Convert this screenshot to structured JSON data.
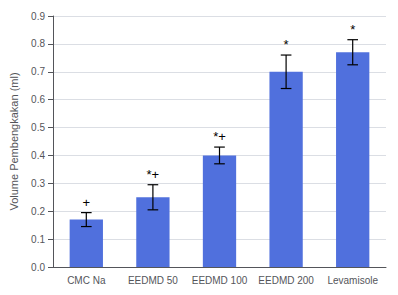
{
  "chart_data": {
    "type": "bar",
    "categories": [
      "CMC Na",
      "EEDMD 50",
      "EEDMD 100",
      "EEDMD 200",
      "Levamisole"
    ],
    "values": [
      0.17,
      0.25,
      0.4,
      0.7,
      0.77
    ],
    "errors": [
      0.025,
      0.045,
      0.03,
      0.06,
      0.045
    ],
    "annotations": [
      "+",
      "*+",
      "*+",
      "*",
      "*"
    ],
    "ylabel": "Volume Pembengkakan (ml)",
    "ylim": [
      0,
      0.9
    ],
    "yticks": [
      {
        "value": 0,
        "label": "0.0"
      },
      0.1,
      0.2,
      0.3,
      0.4,
      0.5,
      0.6,
      0.7,
      0.8,
      0.9
    ],
    "grid": true
  }
}
